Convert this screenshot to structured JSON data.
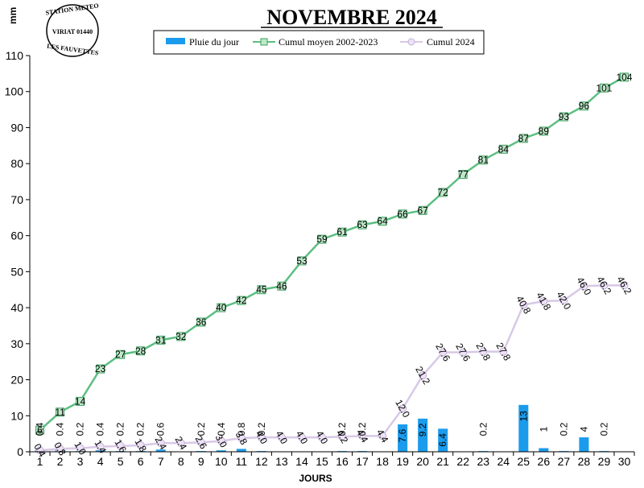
{
  "chart_data": {
    "type": "bar+line",
    "title": "NOVEMBRE 2024",
    "xlabel": "JOURS",
    "ylabel": "mm",
    "ylim": [
      0,
      110
    ],
    "yticks": [
      0,
      10,
      20,
      30,
      40,
      50,
      60,
      70,
      80,
      90,
      100,
      110
    ],
    "categories": [
      "1",
      "2",
      "3",
      "4",
      "5",
      "6",
      "7",
      "8",
      "9",
      "10",
      "11",
      "12",
      "13",
      "14",
      "15",
      "16",
      "17",
      "18",
      "19",
      "20",
      "21",
      "22",
      "23",
      "24",
      "25",
      "26",
      "27",
      "28",
      "29",
      "30"
    ],
    "grid": false,
    "legend": "top",
    "series": [
      {
        "name": "Pluie du jour",
        "kind": "bar",
        "color": "#1b9bec",
        "values": [
          0.4,
          0.4,
          0.2,
          0.4,
          0.2,
          0.2,
          0.6,
          0,
          0.2,
          0.4,
          0.8,
          0.2,
          0,
          0,
          0,
          0.2,
          0.2,
          0,
          7.6,
          9.2,
          6.4,
          0,
          0.2,
          0,
          13,
          1,
          0.2,
          4,
          0.2,
          0
        ],
        "labels": [
          "0.4",
          "0.4",
          "0.2",
          "0.4",
          "0.2",
          "0.2",
          "0.6",
          "",
          "0.2",
          "0.4",
          "0.8",
          "0.2",
          "",
          "",
          "",
          "0.2",
          "0.2",
          "",
          "7.6",
          "9.2",
          "6.4",
          "",
          "0.2",
          "",
          "13",
          "1",
          "0.2",
          "4",
          "0.2",
          ""
        ]
      },
      {
        "name": "Cumul moyen 2002-2023",
        "kind": "line",
        "color": "#5cbf82",
        "values": [
          6,
          11,
          14,
          23,
          27,
          28,
          31,
          32,
          36,
          40,
          42,
          45,
          46,
          53,
          59,
          61,
          63,
          64,
          66,
          67,
          72,
          77,
          81,
          84,
          87,
          89,
          93,
          96,
          101,
          104
        ],
        "labels": [
          "6",
          "11",
          "14",
          "23",
          "27",
          "28",
          "31",
          "32",
          "36",
          "40",
          "42",
          "45",
          "46",
          "53",
          "59",
          "61",
          "63",
          "64",
          "66",
          "67",
          "72",
          "77",
          "81",
          "84",
          "87",
          "89",
          "93",
          "96",
          "101",
          "104"
        ]
      },
      {
        "name": "Cumul 2024",
        "kind": "line",
        "color": "#d8c8e6",
        "values": [
          0.4,
          0.8,
          1.0,
          1.4,
          1.6,
          1.8,
          2.4,
          2.4,
          2.6,
          3.0,
          3.8,
          4.0,
          4.0,
          4.0,
          4.0,
          4.2,
          4.4,
          4.4,
          12.0,
          21.2,
          27.6,
          27.6,
          27.8,
          27.8,
          40.8,
          41.8,
          42.0,
          46.0,
          46.2,
          46.2
        ],
        "labels": [
          "0.4",
          "0.8",
          "1.0",
          "1.4",
          "1.6",
          "1.8",
          "2.4",
          "2.4",
          "2.6",
          "3.0",
          "3.8",
          "4.0",
          "4.0",
          "4.0",
          "4.0",
          "4.2",
          "4.4",
          "4.4",
          "12.0",
          "21.2",
          "27.6",
          "27.6",
          "27.8",
          "27.8",
          "40.8",
          "41.8",
          "42.0",
          "46.0",
          "46.2",
          "46.2"
        ]
      }
    ]
  },
  "stamp": {
    "top": "STATION METEO",
    "middle": "VIRIAT 01440",
    "bottom": "LES FAUVETTES"
  }
}
